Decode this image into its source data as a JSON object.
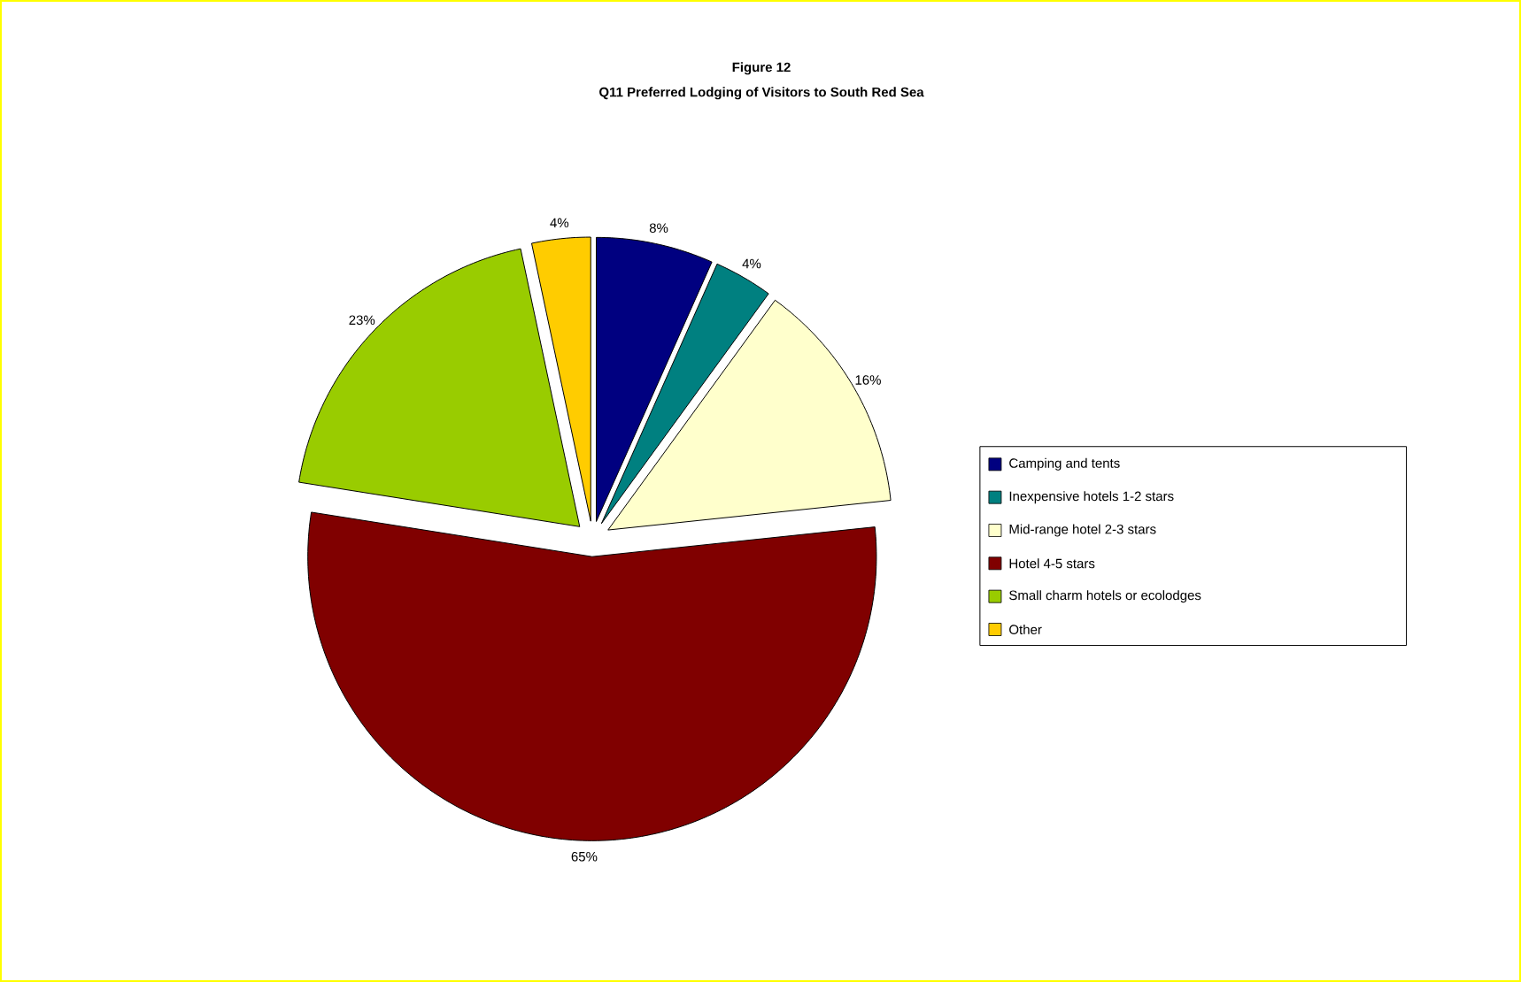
{
  "chart_data": {
    "type": "pie",
    "title": "Figure 12",
    "subtitle": "Q11 Preferred Lodging of Visitors to South Red Sea",
    "categories": [
      "Camping and tents",
      "Inexpensive hotels 1-2 stars",
      "Mid-range hotel 2-3 stars",
      "Hotel 4-5 stars",
      "Small charm hotels or ecolodges",
      "Other"
    ],
    "values": [
      8,
      4,
      16,
      65,
      23,
      4
    ],
    "value_labels": [
      "8%",
      "4%",
      "16%",
      "65%",
      "23%",
      "4%"
    ],
    "colors": [
      "#000080",
      "#008080",
      "#ffffcc",
      "#800000",
      "#99cc00",
      "#ffcc00"
    ],
    "legend": "right"
  }
}
